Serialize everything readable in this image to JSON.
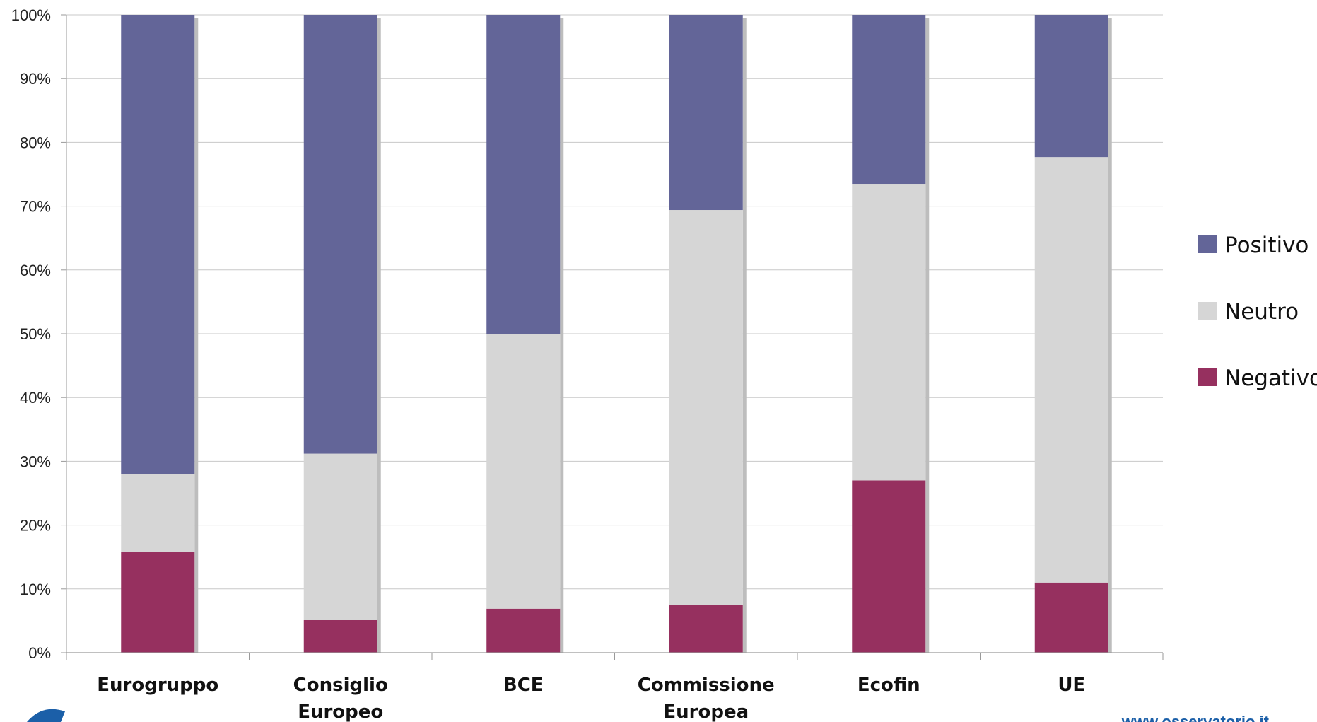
{
  "chart_data": {
    "type": "bar",
    "stacked": true,
    "percent_stacked": true,
    "categories": [
      [
        "Eurogruppo"
      ],
      [
        "Consiglio",
        "Europeo"
      ],
      [
        "BCE"
      ],
      [
        "Commissione",
        "Europea"
      ],
      [
        "Ecofin"
      ],
      [
        "UE"
      ]
    ],
    "series": [
      {
        "name": "Negativo",
        "color": "#96305f",
        "values": [
          15.8,
          5.1,
          6.9,
          7.5,
          27.0,
          11.0
        ]
      },
      {
        "name": "Neutro",
        "color": "#d6d6d6",
        "values": [
          12.2,
          26.1,
          43.1,
          61.9,
          46.5,
          66.7
        ]
      },
      {
        "name": "Positivo",
        "color": "#636598",
        "values": [
          72.0,
          68.8,
          50.0,
          30.6,
          26.5,
          22.3
        ]
      }
    ],
    "legend_order": [
      "Positivo",
      "Neutro",
      "Negativo"
    ],
    "legend_position": "right",
    "ylim": [
      0,
      100
    ],
    "y_ticks": [
      "0%",
      "10%",
      "20%",
      "30%",
      "40%",
      "50%",
      "60%",
      "70%",
      "80%",
      "90%",
      "100%"
    ],
    "grid": true
  },
  "footer": {
    "url": "www.osservatorio.it"
  }
}
